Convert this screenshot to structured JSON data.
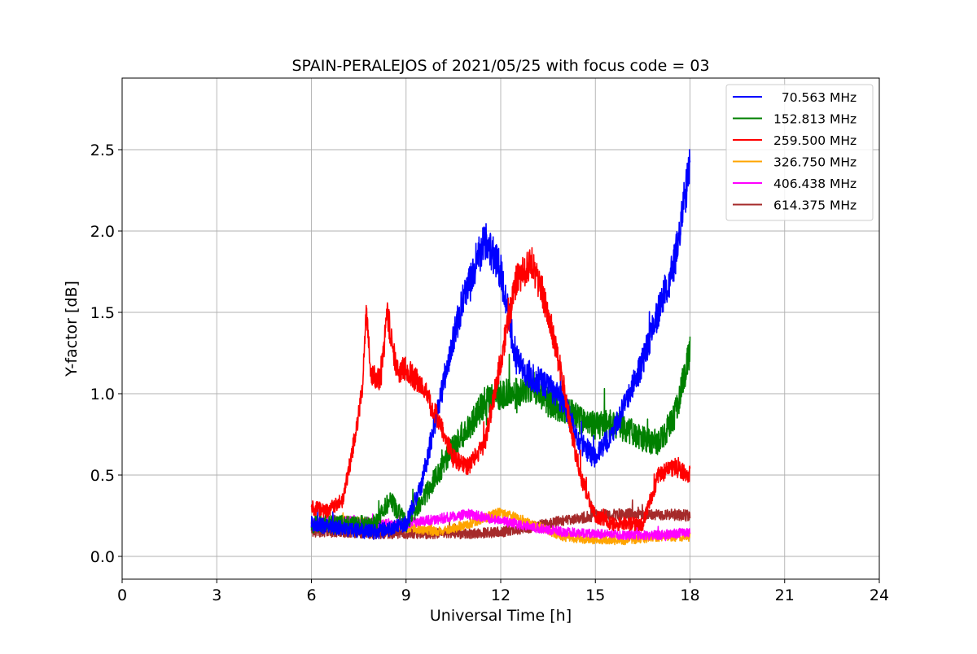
{
  "chart_data": {
    "type": "line",
    "title": "SPAIN-PERALEJOS of 2021/05/25 with focus code = 03",
    "xlabel": "Universal Time [h]",
    "ylabel": "Y-factor [dB]",
    "xlim": [
      0,
      24
    ],
    "ylim": [
      -0.14,
      2.94
    ],
    "xticks": [
      0,
      3,
      6,
      9,
      12,
      15,
      18,
      21,
      24
    ],
    "xtick_labels": [
      "0",
      "3",
      "6",
      "9",
      "12",
      "15",
      "18",
      "21",
      "24"
    ],
    "yticks": [
      0.0,
      0.5,
      1.0,
      1.5,
      2.0,
      2.5
    ],
    "ytick_labels": [
      "0.0",
      "0.5",
      "1.0",
      "1.5",
      "2.0",
      "2.5"
    ],
    "grid": true,
    "legend_position": "top-right",
    "series": [
      {
        "name": "70.563 MHz",
        "legend_label": "  70.563 MHz",
        "color": "#0000ff",
        "noise": 0.08,
        "x": [
          6.0,
          7.0,
          8.0,
          8.5,
          9.0,
          9.5,
          10.0,
          10.5,
          11.0,
          11.5,
          12.0,
          12.5,
          13.0,
          13.5,
          14.0,
          14.5,
          15.0,
          15.5,
          16.0,
          16.5,
          17.0,
          17.5,
          18.0
        ],
        "y": [
          0.2,
          0.17,
          0.15,
          0.17,
          0.2,
          0.45,
          0.9,
          1.35,
          1.7,
          1.95,
          1.75,
          1.2,
          1.1,
          1.05,
          0.95,
          0.7,
          0.6,
          0.75,
          0.95,
          1.2,
          1.5,
          1.8,
          2.4
        ]
      },
      {
        "name": "152.813 MHz",
        "legend_label": "152.813 MHz",
        "color": "#008000",
        "noise": 0.09,
        "x": [
          6.0,
          7.0,
          8.0,
          8.5,
          9.0,
          9.5,
          10.0,
          10.5,
          11.0,
          11.5,
          12.0,
          12.5,
          13.0,
          13.5,
          14.0,
          14.5,
          15.0,
          15.5,
          16.0,
          16.5,
          17.0,
          17.5,
          18.0
        ],
        "y": [
          0.2,
          0.2,
          0.2,
          0.35,
          0.2,
          0.35,
          0.5,
          0.68,
          0.8,
          0.95,
          1.0,
          1.0,
          1.05,
          0.95,
          0.9,
          0.85,
          0.8,
          0.82,
          0.78,
          0.72,
          0.7,
          0.85,
          1.25
        ]
      },
      {
        "name": "259.500 MHz",
        "legend_label": "259.500 MHz",
        "color": "#ff0000",
        "noise": 0.07,
        "x": [
          6.0,
          6.5,
          7.0,
          7.3,
          7.6,
          7.75,
          7.9,
          8.2,
          8.4,
          8.7,
          9.0,
          9.5,
          10.0,
          10.5,
          11.0,
          11.5,
          12.0,
          12.5,
          13.0,
          13.5,
          14.0,
          14.3,
          14.6,
          15.0,
          15.5,
          16.0,
          16.5,
          17.0,
          17.5,
          18.0
        ],
        "y": [
          0.3,
          0.28,
          0.35,
          0.65,
          1.0,
          1.5,
          1.1,
          1.1,
          1.5,
          1.15,
          1.15,
          1.05,
          0.85,
          0.6,
          0.55,
          0.7,
          1.2,
          1.7,
          1.8,
          1.5,
          1.05,
          0.7,
          0.45,
          0.25,
          0.2,
          0.2,
          0.2,
          0.5,
          0.55,
          0.5
        ]
      },
      {
        "name": "326.750 MHz",
        "legend_label": "326.750 MHz",
        "color": "#ffa500",
        "noise": 0.05,
        "x": [
          6.0,
          7.0,
          8.0,
          9.0,
          10.0,
          11.0,
          12.0,
          13.0,
          14.0,
          15.0,
          16.0,
          17.0,
          18.0
        ],
        "y": [
          0.2,
          0.22,
          0.2,
          0.18,
          0.15,
          0.2,
          0.27,
          0.2,
          0.12,
          0.1,
          0.1,
          0.12,
          0.12
        ]
      },
      {
        "name": "406.438 MHz",
        "legend_label": "406.438 MHz",
        "color": "#ff00ff",
        "noise": 0.05,
        "x": [
          6.0,
          7.0,
          8.0,
          9.0,
          10.0,
          11.0,
          12.0,
          13.0,
          14.0,
          15.0,
          16.0,
          17.0,
          18.0
        ],
        "y": [
          0.2,
          0.22,
          0.2,
          0.2,
          0.23,
          0.26,
          0.22,
          0.18,
          0.15,
          0.14,
          0.13,
          0.13,
          0.15
        ]
      },
      {
        "name": "614.375 MHz",
        "legend_label": "614.375 MHz",
        "color": "#a52a2a",
        "noise": 0.055,
        "x": [
          6.0,
          7.0,
          8.0,
          9.0,
          10.0,
          11.0,
          12.0,
          13.0,
          14.0,
          15.0,
          16.0,
          17.0,
          18.0
        ],
        "y": [
          0.15,
          0.15,
          0.14,
          0.14,
          0.14,
          0.14,
          0.15,
          0.18,
          0.22,
          0.25,
          0.26,
          0.26,
          0.25
        ]
      }
    ]
  }
}
